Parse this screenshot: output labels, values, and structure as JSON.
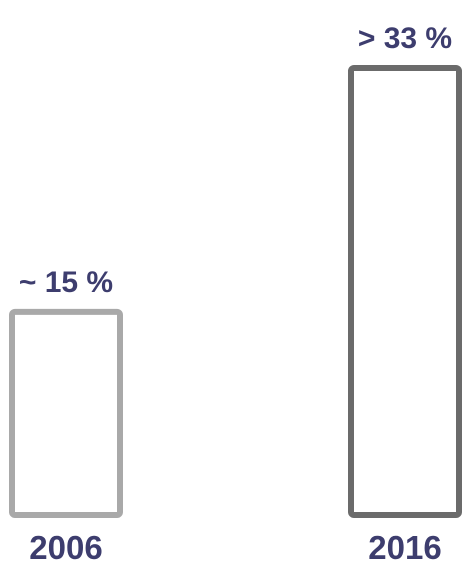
{
  "chart_data": {
    "type": "bar",
    "categories": [
      "2006",
      "2016"
    ],
    "values": [
      15,
      33
    ],
    "value_labels": [
      "~ 15 %",
      "> 33 %"
    ],
    "title": "",
    "xlabel": "",
    "ylabel": "",
    "ylim": [
      0,
      33
    ],
    "grid": false,
    "colors": {
      "bar_2006": "#a9a9a9",
      "bar_2016": "#6b6b6b",
      "label_text": "#3d3d6e"
    }
  }
}
